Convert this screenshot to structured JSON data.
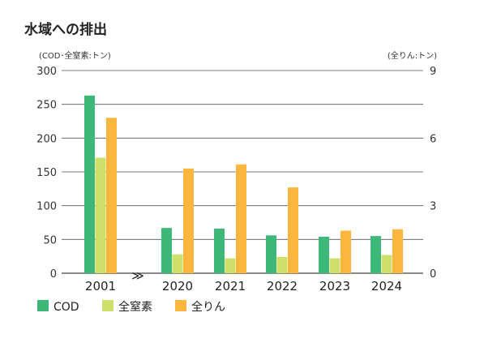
{
  "chart_data": {
    "type": "bar",
    "title": "水域への排出",
    "left_unit_label": "(COD･全窒素:トン)",
    "right_unit_label": "(全りん:トン)",
    "categories": [
      "2001",
      "2020",
      "2021",
      "2022",
      "2023",
      "2024"
    ],
    "axis_break_symbol": "≫",
    "left_axis": {
      "ylim": [
        0,
        300
      ],
      "ticks": [
        "0",
        "50",
        "100",
        "150",
        "200",
        "250",
        "300"
      ]
    },
    "right_axis": {
      "ylim": [
        0,
        9
      ],
      "ticks": [
        "0",
        "3",
        "6",
        "9"
      ]
    },
    "series": [
      {
        "name": "COD",
        "axis": "left",
        "color": "#3db878",
        "values": [
          263,
          67,
          66,
          56,
          54,
          55
        ]
      },
      {
        "name": "全窒素",
        "axis": "left",
        "color": "#cfe06a",
        "values": [
          171,
          28,
          22,
          24,
          22,
          27
        ]
      },
      {
        "name": "全りん",
        "axis": "right",
        "color": "#fbb63f",
        "values": [
          6.9,
          4.65,
          4.83,
          3.81,
          1.89,
          1.95
        ]
      }
    ],
    "grid": true,
    "legend_position": "bottom-left"
  }
}
